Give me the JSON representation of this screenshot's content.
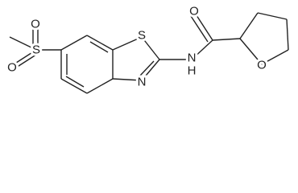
{
  "atoms": [
    "O",
    "S",
    "O",
    "S",
    "N",
    "N",
    "H",
    "O",
    "O"
  ]
}
